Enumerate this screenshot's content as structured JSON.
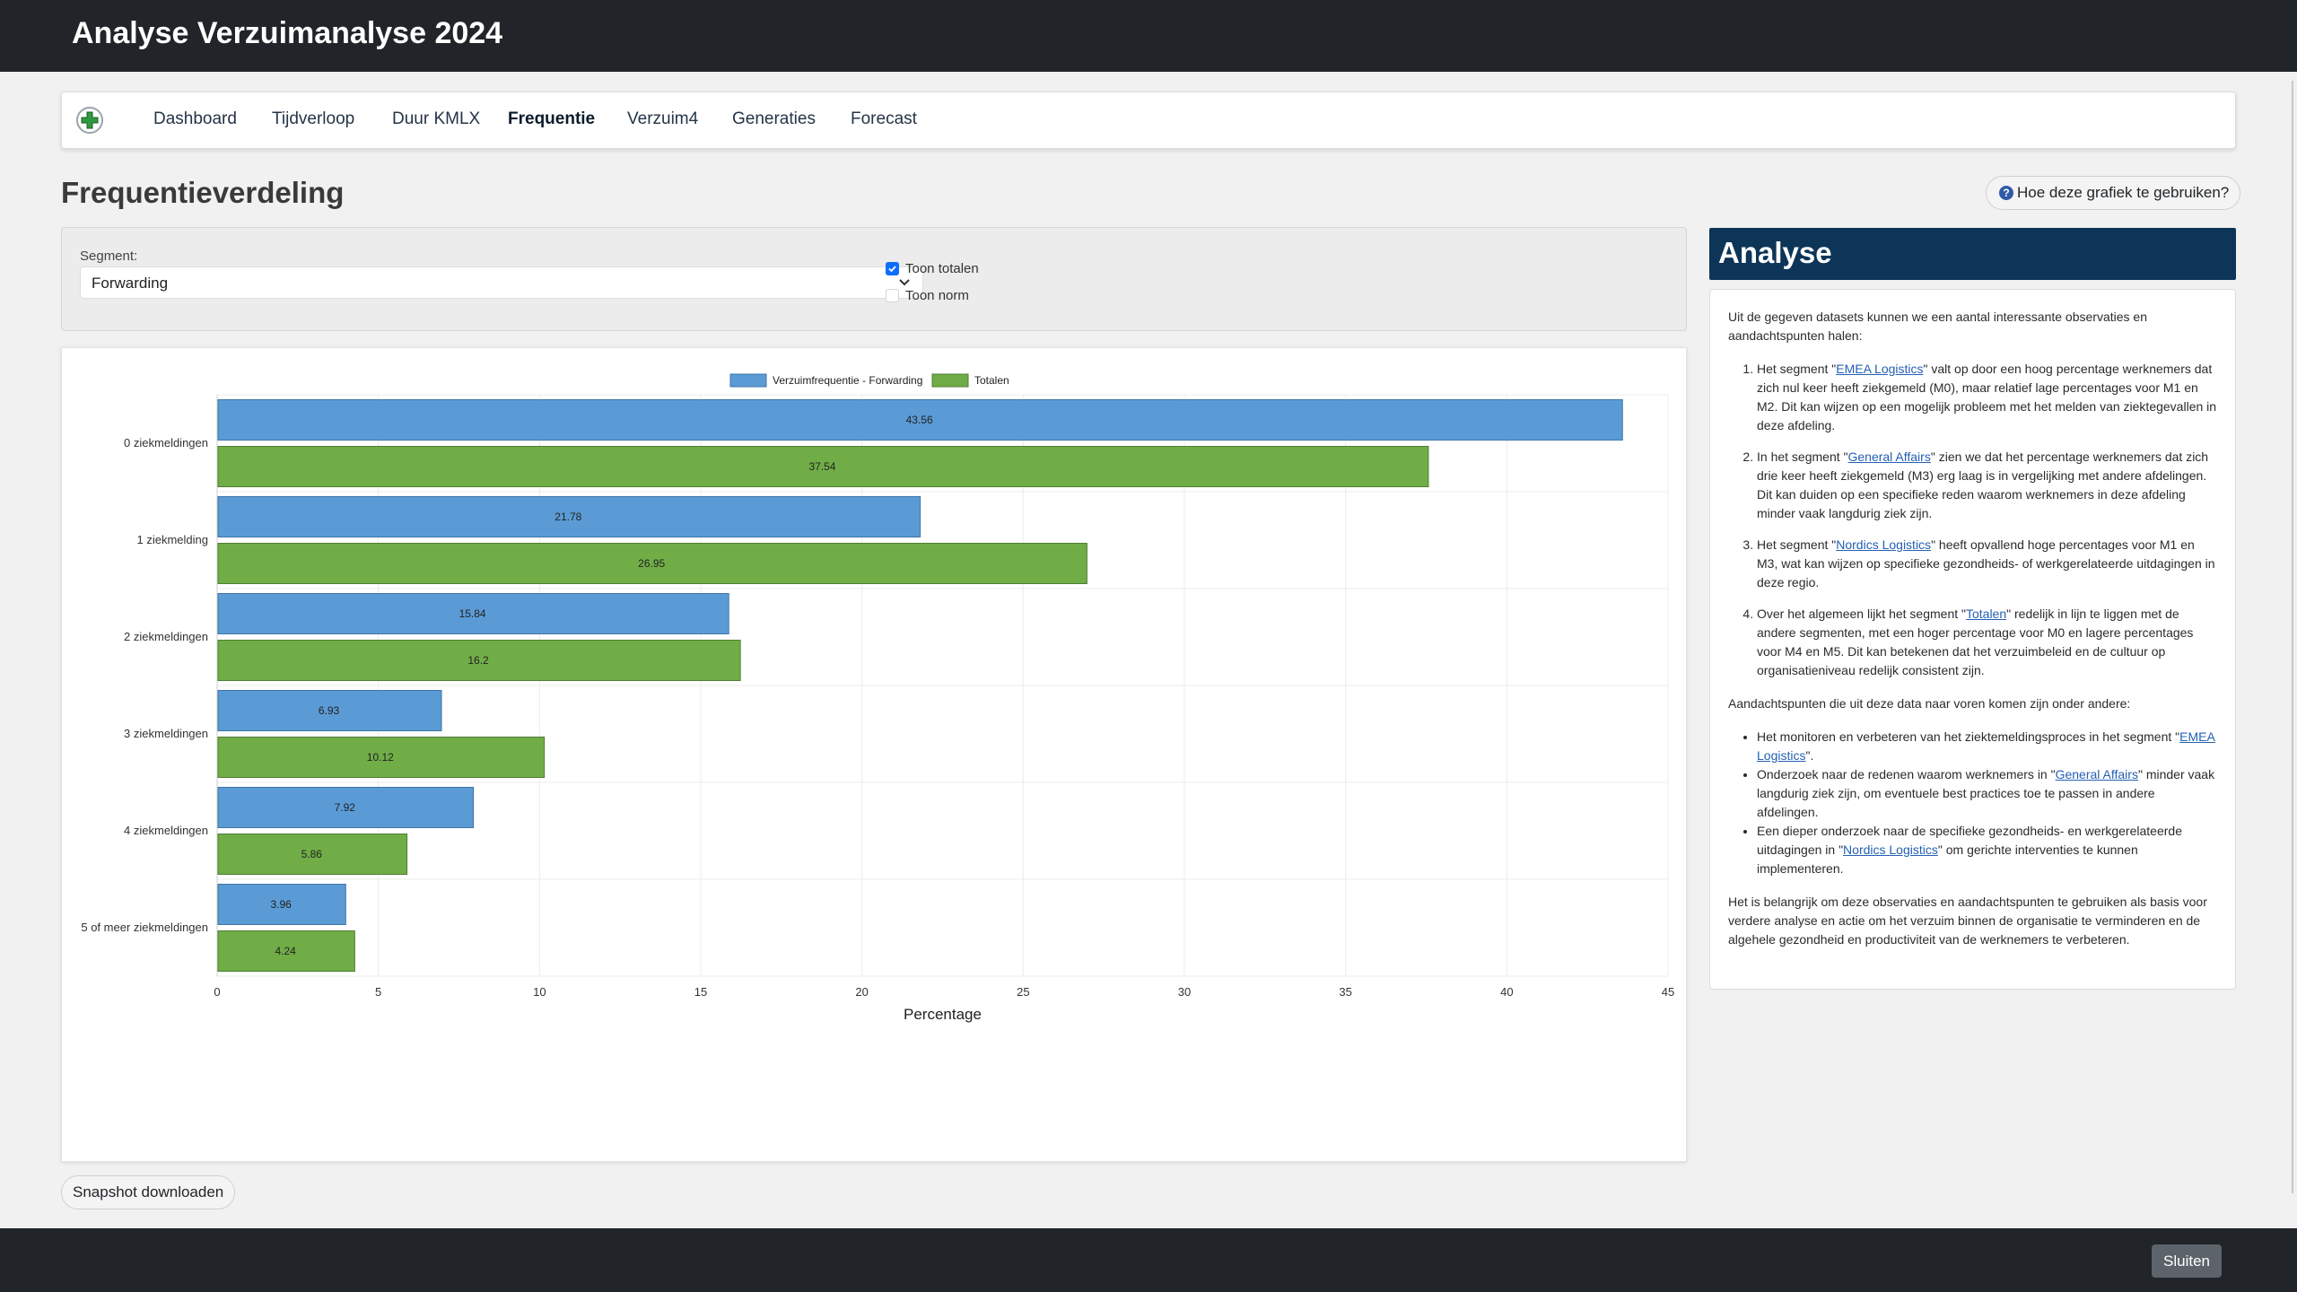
{
  "app": {
    "title": "Analyse Verzuimanalyse 2024"
  },
  "nav": {
    "items": [
      {
        "label": "Dashboard"
      },
      {
        "label": "Tijdverloop"
      },
      {
        "label": "Duur KMLX"
      },
      {
        "label": "Frequentie"
      },
      {
        "label": "Verzuim4"
      },
      {
        "label": "Generaties"
      },
      {
        "label": "Forecast"
      }
    ],
    "active": "Frequentie",
    "logo_icon": "plus-icon"
  },
  "page": {
    "title": "Frequentieverdeling",
    "help_label": "Hoe deze grafiek te gebruiken?",
    "help_icon": "question-icon"
  },
  "filters": {
    "segment_label": "Segment:",
    "segment_value": "Forwarding",
    "show_totals_label": "Toon totalen",
    "show_totals": true,
    "show_norm_label": "Toon norm",
    "show_norm": false
  },
  "chart_data": {
    "type": "bar",
    "orientation": "horizontal",
    "categories": [
      "0 ziekmeldingen",
      "1 ziekmelding",
      "2 ziekmeldingen",
      "3 ziekmeldingen",
      "4 ziekmeldingen",
      "5 of meer ziekmeldingen"
    ],
    "series": [
      {
        "name": "Verzuimfrequentie - Forwarding",
        "color": "#5b9bd5",
        "values": [
          43.56,
          21.78,
          15.84,
          6.93,
          7.92,
          3.96
        ]
      },
      {
        "name": "Totalen",
        "color": "#70ad47",
        "values": [
          37.54,
          26.95,
          16.2,
          10.12,
          5.86,
          4.24
        ]
      }
    ],
    "xlabel": "Percentage",
    "xlim": [
      0,
      45
    ],
    "xticks": [
      0,
      5,
      10,
      15,
      20,
      25,
      30,
      35,
      40,
      45
    ],
    "grid": true,
    "legend": "top-center",
    "data_labels": true
  },
  "analyse": {
    "title": "Analyse",
    "intro": "Uit de gegeven datasets kunnen we een aantal interessante observaties en aandachtspunten halen:",
    "observations": [
      {
        "pre": "Het segment \"",
        "link": "EMEA Logistics",
        "post": "\" valt op door een hoog percentage werknemers dat zich nul keer heeft ziekgemeld (M0), maar relatief lage percentages voor M1 en M2. Dit kan wijzen op een mogelijk probleem met het melden van ziektegevallen in deze afdeling."
      },
      {
        "pre": "In het segment \"",
        "link": "General Affairs",
        "post": "\" zien we dat het percentage werknemers dat zich drie keer heeft ziekgemeld (M3) erg laag is in vergelijking met andere afdelingen. Dit kan duiden op een specifieke reden waarom werknemers in deze afdeling minder vaak langdurig ziek zijn."
      },
      {
        "pre": "Het segment \"",
        "link": "Nordics Logistics",
        "post": "\" heeft opvallend hoge percentages voor M1 en M3, wat kan wijzen op specifieke gezondheids- of werkgerelateerde uitdagingen in deze regio."
      },
      {
        "pre": "Over het algemeen lijkt het segment \"",
        "link": "Totalen",
        "post": "\" redelijk in lijn te liggen met de andere segmenten, met een hoger percentage voor M0 en lagere percentages voor M4 en M5. Dit kan betekenen dat het verzuimbeleid en de cultuur op organisatieniveau redelijk consistent zijn."
      }
    ],
    "points_intro": "Aandachtspunten die uit deze data naar voren komen zijn onder andere:",
    "points": [
      {
        "pre": "Het monitoren en verbeteren van het ziektemeldingsproces in het segment \"",
        "link": "EMEA Logistics",
        "post": "\"."
      },
      {
        "pre": "Onderzoek naar de redenen waarom werknemers in \"",
        "link": "General Affairs",
        "post": "\" minder vaak langdurig ziek zijn, om eventuele best practices toe te passen in andere afdelingen."
      },
      {
        "pre": "Een dieper onderzoek naar de specifieke gezondheids- en werkgerelateerde uitdagingen in \"",
        "link": "Nordics Logistics",
        "post": "\" om gerichte interventies te kunnen implementeren."
      }
    ],
    "conclusion": "Het is belangrijk om deze observaties en aandachtspunten te gebruiken als basis voor verdere analyse en actie om het verzuim binnen de organisatie te verminderen en de algehele gezondheid en productiviteit van de werknemers te verbeteren."
  },
  "actions": {
    "snapshot_label": "Snapshot downloaden",
    "close_label": "Sluiten"
  }
}
